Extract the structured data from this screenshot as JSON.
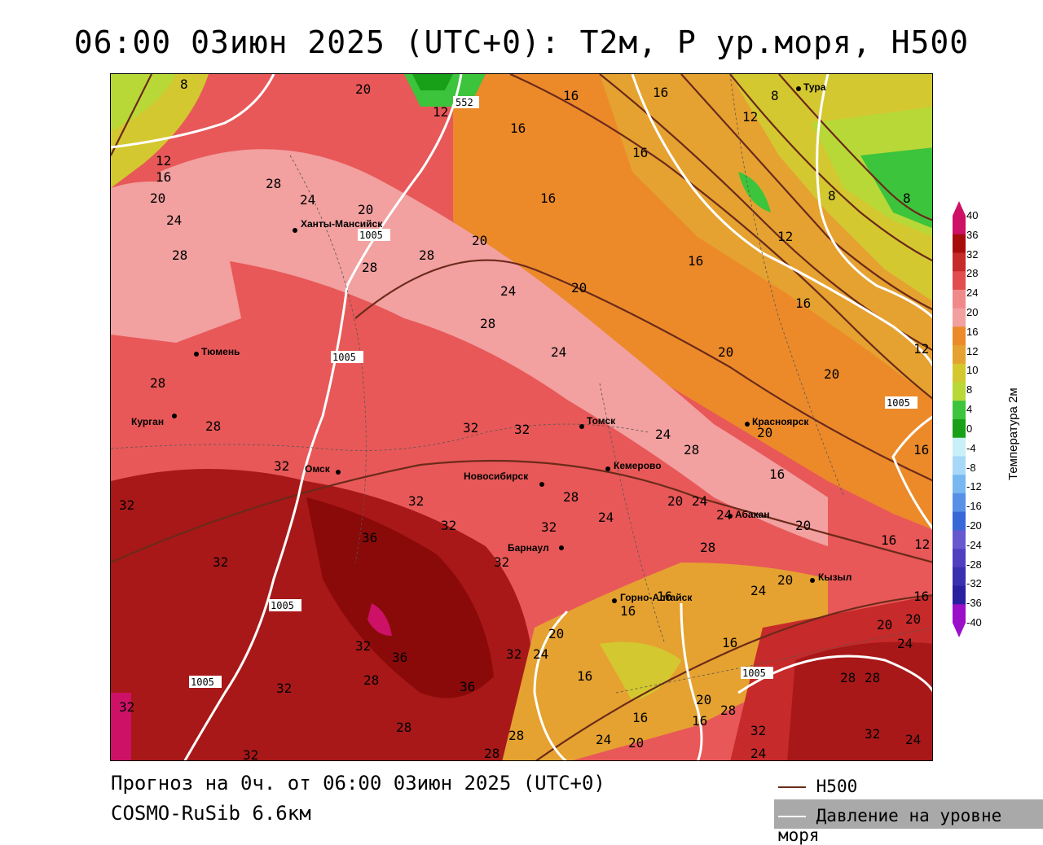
{
  "title": "06:00 03июн 2025 (UTC+0): T2м, P ур.моря, H500",
  "footer": {
    "forecast": "Прогноз на 0ч. от 06:00 03июн 2025 (UTC+0)",
    "model": "COSMO-RuSib 6.6км"
  },
  "legend": {
    "h500": "H500",
    "pressure": "Давление на уровне моря",
    "h500_color": "#6b2a1a",
    "pressure_color": "#ffffff"
  },
  "colorbar": {
    "title": "Температура 2м",
    "labels": [
      "40",
      "36",
      "32",
      "28",
      "24",
      "20",
      "16",
      "12",
      "10",
      "8",
      "4",
      "0",
      "-4",
      "-8",
      "-12",
      "-16",
      "-20",
      "-24",
      "-28",
      "-32",
      "-36",
      "-40"
    ],
    "colors": [
      "#cc1166",
      "#a80d0d",
      "#c62a2a",
      "#e24d4d",
      "#f08a8a",
      "#f2a0a0",
      "#ec8a2a",
      "#e5a230",
      "#d4c830",
      "#b8d838",
      "#3cc43c",
      "#18a018",
      "#c8f0f8",
      "#a8d8f8",
      "#78b8f0",
      "#5890e8",
      "#3868d8",
      "#6858d0",
      "#5040c0",
      "#3830b0",
      "#2820a0",
      "#9a10c8"
    ]
  },
  "cities": [
    {
      "name": "Тура"
    },
    {
      "name": "Ханты-Мансийск"
    },
    {
      "name": "Тюмень"
    },
    {
      "name": "Курган"
    },
    {
      "name": "Омск"
    },
    {
      "name": "Новосибирск"
    },
    {
      "name": "Томск"
    },
    {
      "name": "Кемерово"
    },
    {
      "name": "Красноярск"
    },
    {
      "name": "Абакан"
    },
    {
      "name": "Барнаул"
    },
    {
      "name": "Кызыл"
    },
    {
      "name": "Горно-Алтайск"
    }
  ],
  "pressure_labels": [
    "1005",
    "1005",
    "1005",
    "1005",
    "1005",
    "1005"
  ],
  "h500_labels": [
    "552"
  ]
}
